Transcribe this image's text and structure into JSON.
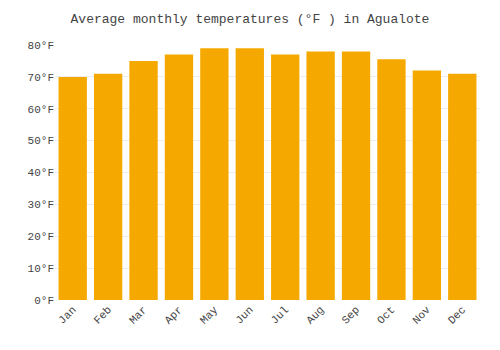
{
  "chart_data": {
    "type": "bar",
    "title": "Average monthly temperatures (°F ) in Agualote",
    "categories": [
      "Jan",
      "Feb",
      "Mar",
      "Apr",
      "May",
      "Jun",
      "Jul",
      "Aug",
      "Sep",
      "Oct",
      "Nov",
      "Dec"
    ],
    "values": [
      70,
      71,
      75,
      77,
      79,
      79,
      77,
      78,
      78,
      75.5,
      72,
      71
    ],
    "color": "#F5A800",
    "ylim": [
      0,
      80
    ],
    "yticks": [
      {
        "value": 0,
        "label": "0°F"
      },
      {
        "value": 10,
        "label": "10°F"
      },
      {
        "value": 20,
        "label": "20°F"
      },
      {
        "value": 30,
        "label": "30°F"
      },
      {
        "value": 40,
        "label": "40°F"
      },
      {
        "value": 50,
        "label": "50°F"
      },
      {
        "value": 60,
        "label": "60°F"
      },
      {
        "value": 70,
        "label": "70°F"
      },
      {
        "value": 80,
        "label": "80°F"
      }
    ],
    "grid": true
  }
}
